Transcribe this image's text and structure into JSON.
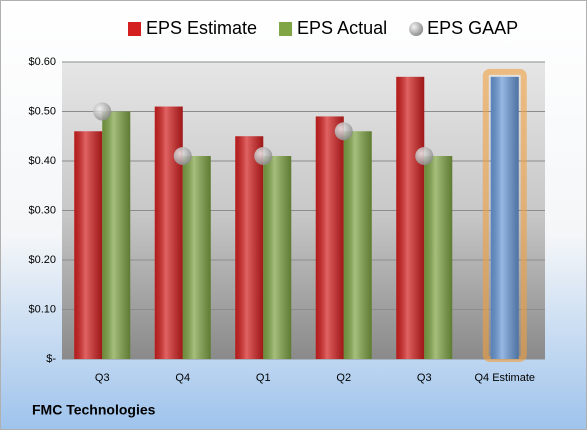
{
  "chart_data": {
    "type": "bar",
    "title": "FMC Technologies",
    "categories": [
      "Q3",
      "Q4",
      "Q1",
      "Q2",
      "Q3",
      "Q4 Estimate"
    ],
    "series": [
      {
        "name": "EPS Estimate",
        "color": "#d42020",
        "values": [
          0.46,
          0.51,
          0.45,
          0.49,
          0.57,
          0.57
        ]
      },
      {
        "name": "EPS Actual",
        "color": "#7fa545",
        "values": [
          0.5,
          0.41,
          0.41,
          0.46,
          0.41,
          null
        ]
      },
      {
        "name": "EPS GAAP",
        "color": "#b8b8b8",
        "marker": "sphere",
        "values": [
          0.5,
          0.41,
          0.41,
          0.46,
          0.41,
          null
        ]
      }
    ],
    "highlight_color": "#6a9ad8",
    "ylim": [
      0,
      0.6
    ],
    "yticks": [
      {
        "value": 0,
        "label": "$-"
      },
      {
        "value": 0.1,
        "label": "$0.10"
      },
      {
        "value": 0.2,
        "label": "$0.20"
      },
      {
        "value": 0.3,
        "label": "$0.30"
      },
      {
        "value": 0.4,
        "label": "$0.40"
      },
      {
        "value": 0.5,
        "label": "$0.50"
      },
      {
        "value": 0.6,
        "label": "$0.60"
      }
    ],
    "grid": true,
    "legend": "top"
  }
}
